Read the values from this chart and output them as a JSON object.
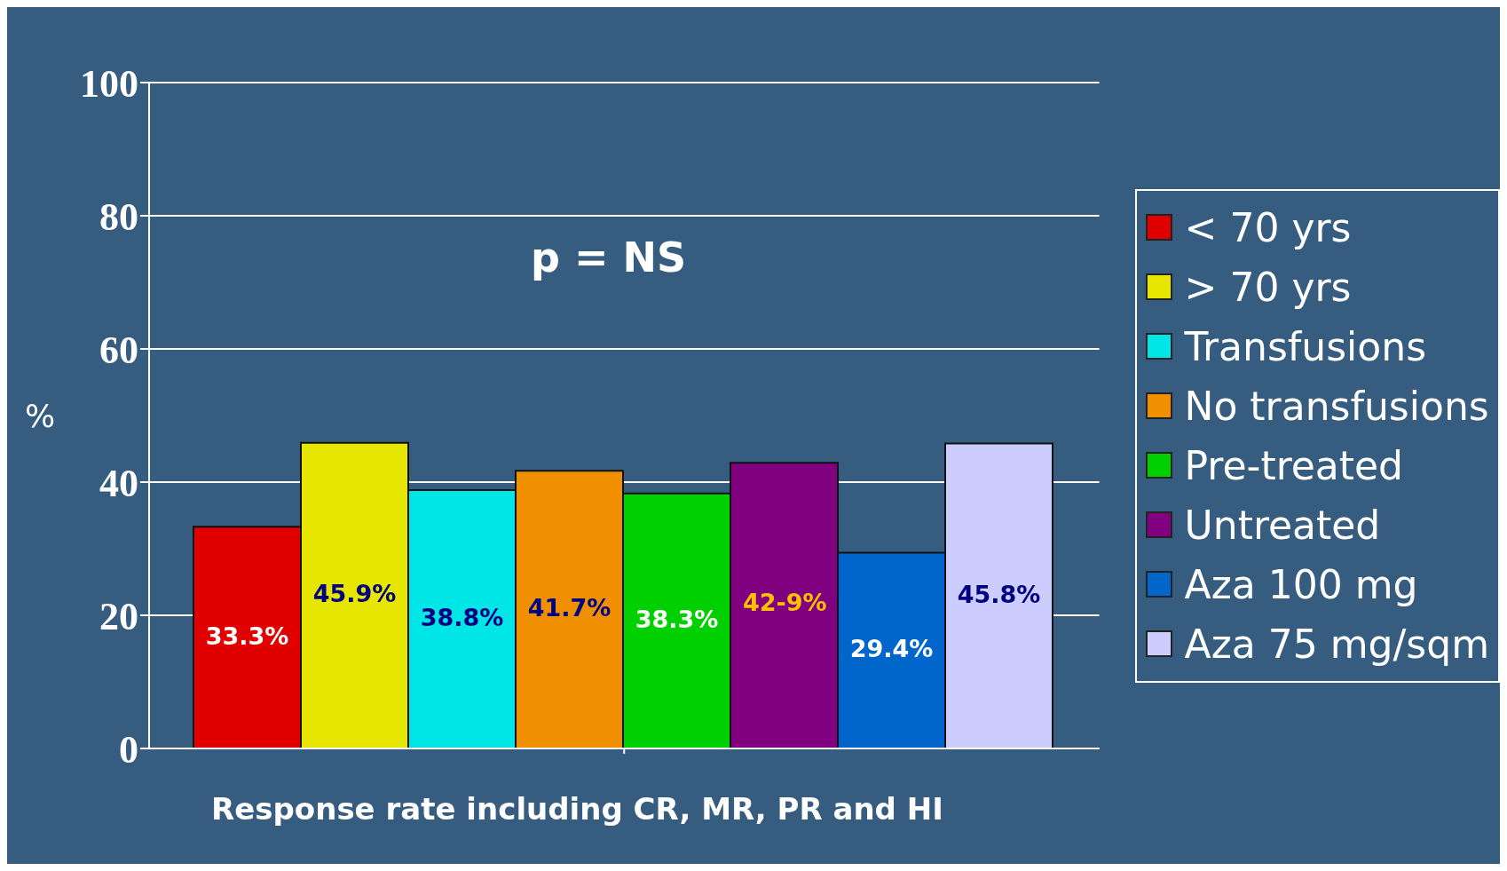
{
  "chart_data": {
    "type": "bar",
    "categories": [
      null
    ],
    "xlabel": "Response rate including CR, MR, PR and HI",
    "ylabel": "%",
    "annotations": [
      "p = NS",
      "42-9%"
    ],
    "series": [
      {
        "name": "< 70 yrs",
        "color": "#e00000",
        "values": [
          33.3
        ],
        "value_labels": [
          "33.3%"
        ]
      },
      {
        "name": "> 70 yrs",
        "color": "#e6e600",
        "values": [
          45.9
        ],
        "value_labels": [
          "45.9%"
        ]
      },
      {
        "name": "Transfusions",
        "color": "#00e6e6",
        "values": [
          38.8
        ],
        "value_labels": [
          "38.8%"
        ]
      },
      {
        "name": "No transfusions",
        "color": "#f09000",
        "values": [
          41.7
        ],
        "value_labels": [
          "41.7%"
        ]
      },
      {
        "name": "Pre-treated",
        "color": "#00d000",
        "values": [
          38.3
        ],
        "value_labels": [
          "38.3%"
        ]
      },
      {
        "name": "Untreated",
        "color": "#800080",
        "values": [
          42.9
        ],
        "value_labels": [
          null
        ]
      },
      {
        "name": "Aza 100 mg",
        "color": "#0066cc",
        "values": [
          29.4
        ],
        "value_labels": [
          "29.4%"
        ]
      },
      {
        "name": "Aza 75 mg/sqm",
        "color": "#ccccff",
        "values": [
          45.8
        ],
        "value_labels": [
          "45.8%"
        ]
      }
    ],
    "ylim": [
      0,
      100
    ],
    "yticks": [
      0,
      20,
      40,
      60,
      80,
      100
    ],
    "grid": "y",
    "legend": "right"
  }
}
